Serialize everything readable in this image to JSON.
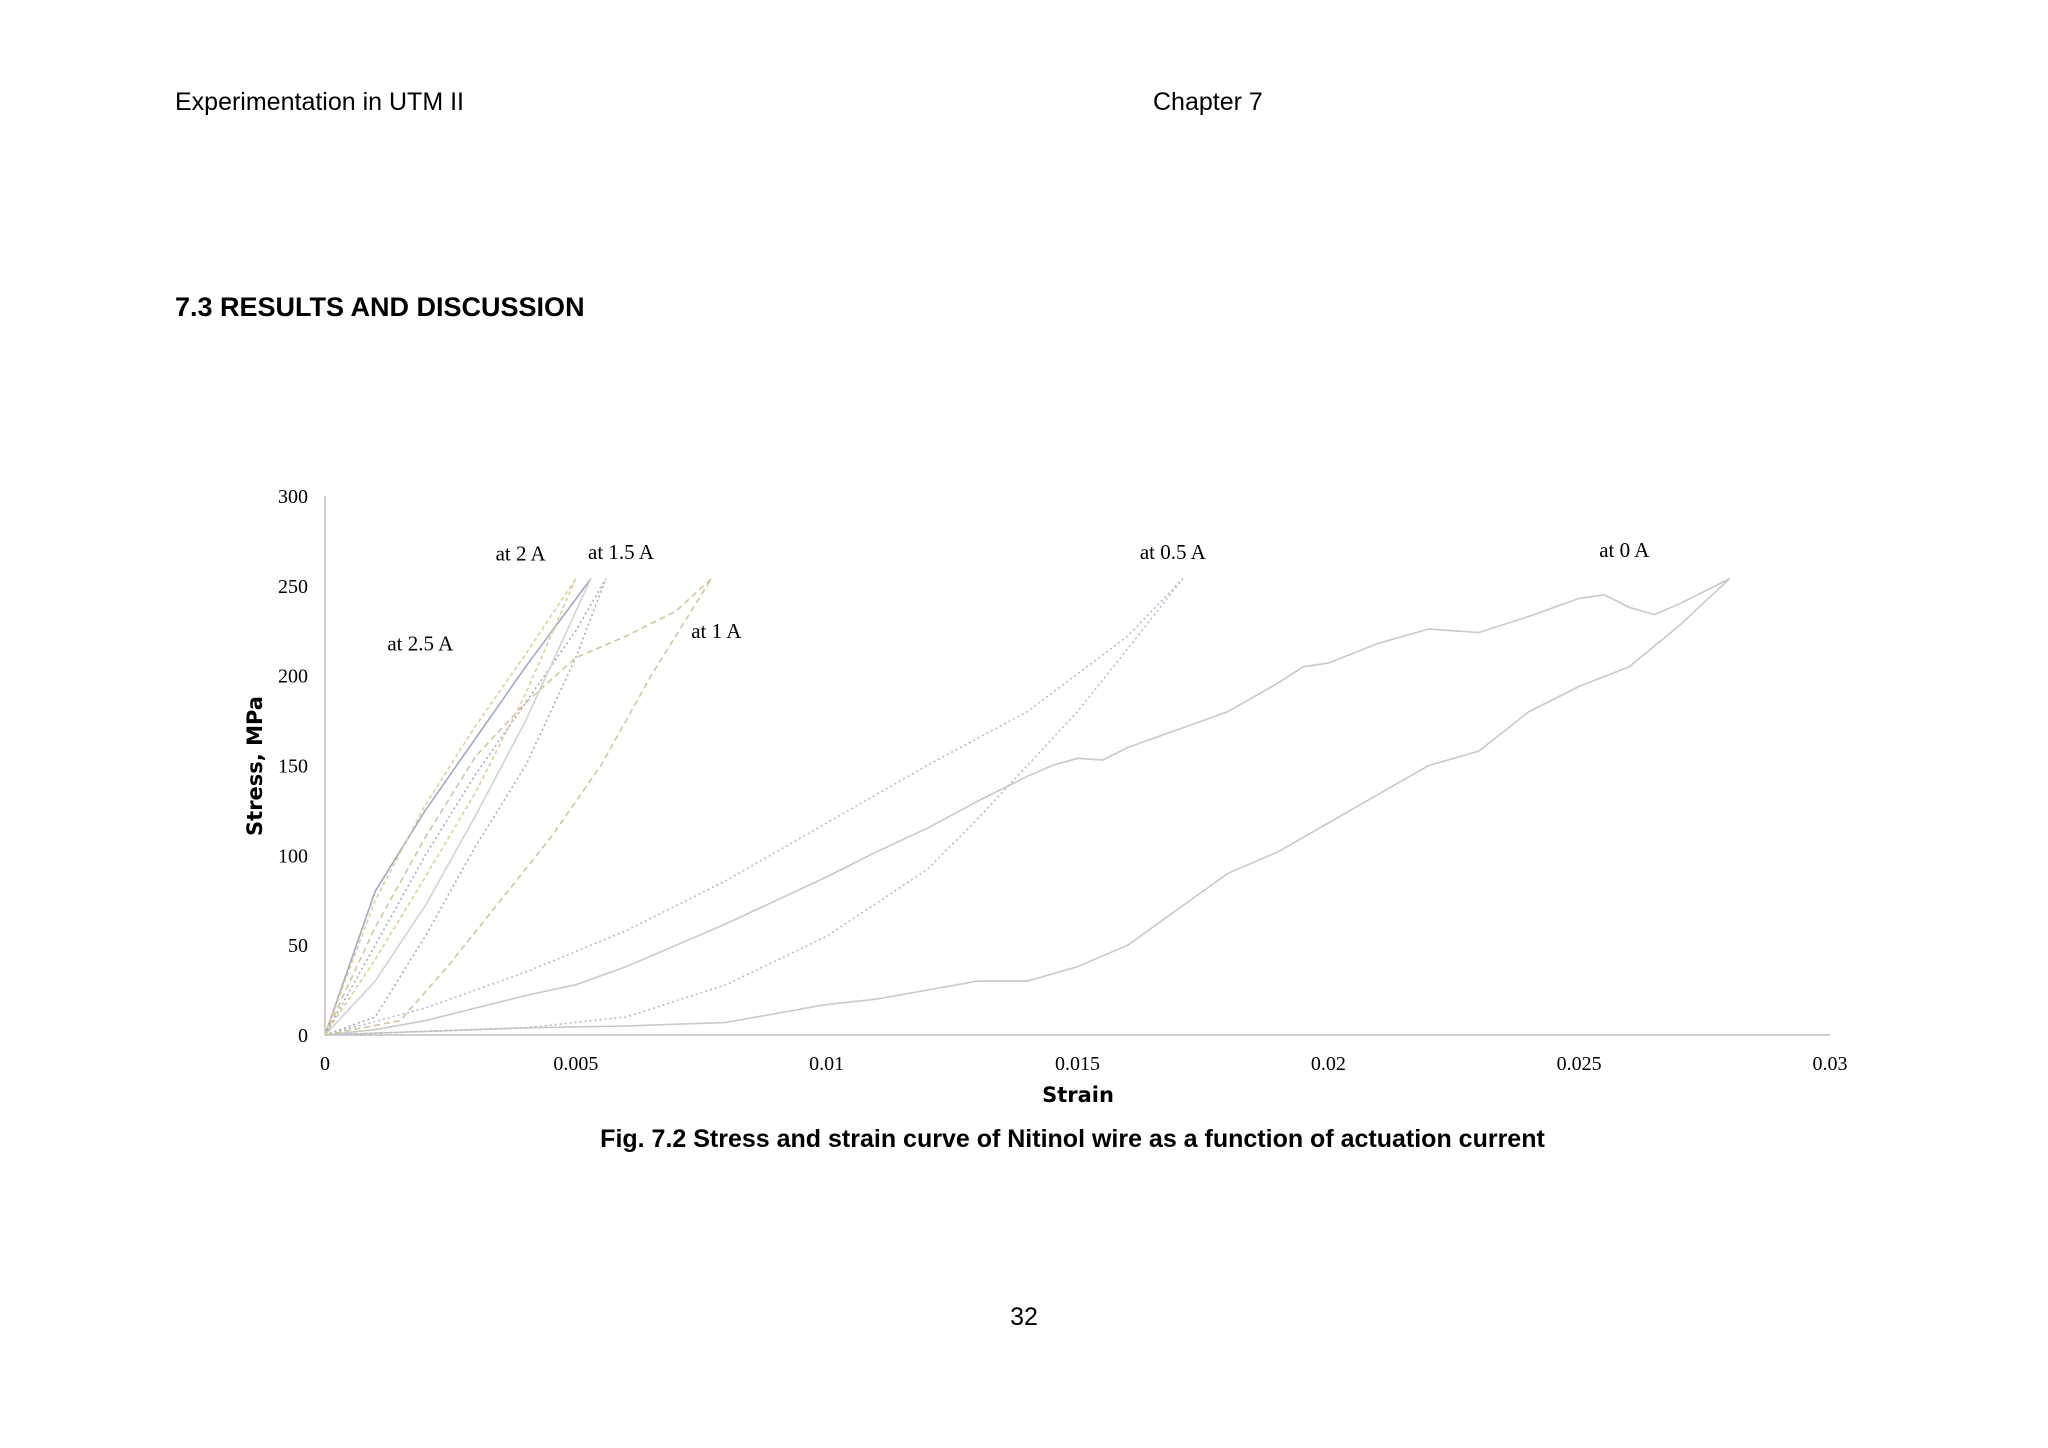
{
  "header": {
    "left": "Experimentation in UTM II",
    "right": "Chapter 7"
  },
  "section_heading": "7.3 RESULTS AND DISCUSSION",
  "figure_caption": "Fig. 7.2 Stress and strain curve of Nitinol wire as a function of actuation current",
  "page_number": "32",
  "chart_data": {
    "type": "line",
    "title": "",
    "xlabel": "Strain",
    "ylabel": "Stress, MPa",
    "xlim": [
      0,
      0.03
    ],
    "ylim": [
      0,
      300
    ],
    "x_ticks": [
      0,
      0.005,
      0.01,
      0.015,
      0.02,
      0.025,
      0.03
    ],
    "x_tick_labels": [
      "0",
      "0.005",
      "0.01",
      "0.015",
      "0.02",
      "0.025",
      "0.03"
    ],
    "y_ticks": [
      0,
      50,
      100,
      150,
      200,
      250,
      300
    ],
    "y_tick_labels": [
      "0",
      "50",
      "100",
      "150",
      "200",
      "250",
      "300"
    ],
    "grid": false,
    "legend": "none",
    "annotations": [
      {
        "text": "at 2.5 A",
        "x": 0.0019,
        "y": 214
      },
      {
        "text": "at 2 A",
        "x": 0.0039,
        "y": 264
      },
      {
        "text": "at 1.5 A",
        "x": 0.0059,
        "y": 265
      },
      {
        "text": "at 1 A",
        "x": 0.0078,
        "y": 221
      },
      {
        "text": "at 0.5 A",
        "x": 0.0169,
        "y": 265
      },
      {
        "text": "at 0 A",
        "x": 0.0259,
        "y": 266
      }
    ],
    "series": [
      {
        "color": "#c9c9c9",
        "dash": "solid",
        "x": [
          0,
          0.001,
          0.002,
          0.003,
          0.004,
          0.005,
          0.006,
          0.007,
          0.008,
          0.009,
          0.01,
          0.011,
          0.012,
          0.013,
          0.014,
          0.0145,
          0.015,
          0.0155,
          0.016,
          0.017,
          0.018,
          0.019,
          0.0195,
          0.02,
          0.021,
          0.022,
          0.0225,
          0.023,
          0.024,
          0.025,
          0.0255,
          0.026,
          0.0265,
          0.027,
          0.028
        ],
        "y": [
          0,
          3,
          8,
          15,
          22,
          28,
          38,
          50,
          62,
          75,
          88,
          102,
          115,
          130,
          144,
          150,
          154,
          153,
          160,
          170,
          180,
          196,
          205,
          207,
          218,
          226,
          225,
          224,
          233,
          243,
          245,
          238,
          234,
          240,
          254
        ]
      },
      {
        "color": "#c9c9c9",
        "dash": "solid",
        "x": [
          0,
          0.002,
          0.004,
          0.006,
          0.008,
          0.009,
          0.01,
          0.011,
          0.012,
          0.013,
          0.014,
          0.015,
          0.016,
          0.017,
          0.018,
          0.019,
          0.02,
          0.021,
          0.022,
          0.023,
          0.024,
          0.025,
          0.026,
          0.027,
          0.028
        ],
        "y": [
          0,
          2,
          4,
          5,
          7,
          12,
          17,
          20,
          25,
          30,
          30,
          38,
          50,
          70,
          90,
          102,
          118,
          134,
          150,
          158,
          180,
          194,
          205,
          228,
          254
        ]
      },
      {
        "color": "#b8bbcc",
        "dash": "2,3",
        "x": [
          0,
          0.002,
          0.004,
          0.006,
          0.008,
          0.01,
          0.012,
          0.014,
          0.016,
          0.0171
        ],
        "y": [
          0,
          15,
          35,
          58,
          86,
          118,
          150,
          180,
          222,
          254
        ]
      },
      {
        "color": "#b8bbcc",
        "dash": "2,3",
        "x": [
          0,
          0.002,
          0.004,
          0.006,
          0.008,
          0.01,
          0.012,
          0.013,
          0.014,
          0.015,
          0.016,
          0.0171
        ],
        "y": [
          0,
          2,
          4,
          10,
          28,
          55,
          92,
          120,
          150,
          180,
          215,
          254
        ]
      },
      {
        "color": "#d4c4a0",
        "dash": "6,4",
        "x": [
          0,
          0.001,
          0.002,
          0.003,
          0.004,
          0.005,
          0.006,
          0.007,
          0.0077
        ],
        "y": [
          0,
          60,
          110,
          155,
          185,
          210,
          222,
          236,
          254
        ]
      },
      {
        "color": "#d4c4a0",
        "dash": "6,4",
        "x": [
          0,
          0.0015,
          0.0025,
          0.0035,
          0.0045,
          0.0055,
          0.0065,
          0.0077
        ],
        "y": [
          0,
          8,
          40,
          75,
          110,
          150,
          200,
          254
        ]
      },
      {
        "color": "#aaaac2",
        "dash": "2,3",
        "x": [
          0,
          0.001,
          0.002,
          0.003,
          0.004,
          0.005,
          0.0056
        ],
        "y": [
          0,
          50,
          100,
          145,
          185,
          225,
          254
        ]
      },
      {
        "color": "#aaaac2",
        "dash": "2,3",
        "x": [
          0,
          0.001,
          0.002,
          0.003,
          0.004,
          0.005,
          0.0056
        ],
        "y": [
          0,
          10,
          55,
          105,
          150,
          210,
          254
        ]
      },
      {
        "color": "#a6a8c0",
        "dash": "solid",
        "x": [
          0,
          0.001,
          0.002,
          0.003,
          0.004,
          0.0053
        ],
        "y": [
          0,
          80,
          125,
          165,
          205,
          254
        ]
      },
      {
        "color": "#d2d2d2",
        "dash": "solid",
        "x": [
          0,
          0.001,
          0.002,
          0.003,
          0.004,
          0.0053
        ],
        "y": [
          0,
          30,
          72,
          122,
          175,
          254
        ]
      },
      {
        "color": "#e0cf9a",
        "dash": "4,3",
        "x": [
          0,
          0.001,
          0.002,
          0.003,
          0.004,
          0.005
        ],
        "y": [
          0,
          75,
          128,
          172,
          212,
          254
        ]
      },
      {
        "color": "#e0cf9a",
        "dash": "4,3",
        "x": [
          0,
          0.001,
          0.002,
          0.003,
          0.004,
          0.005
        ],
        "y": [
          0,
          42,
          88,
          135,
          190,
          254
        ]
      }
    ]
  }
}
